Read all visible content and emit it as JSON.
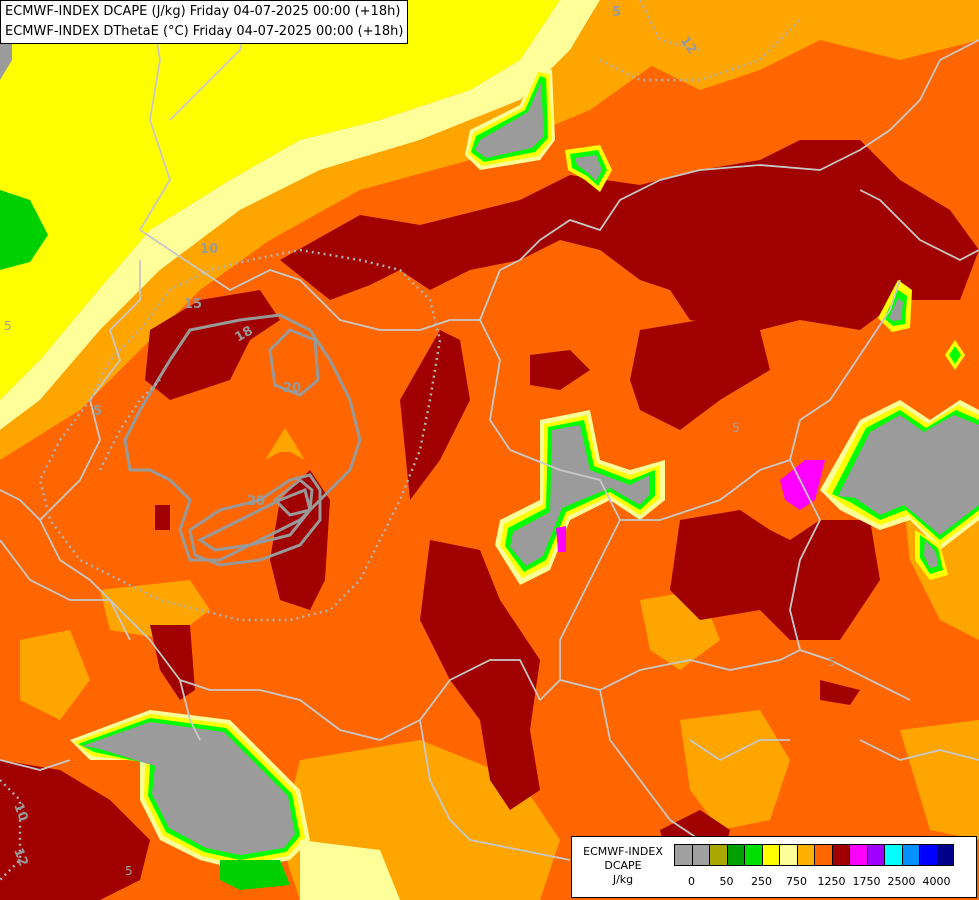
{
  "titles": {
    "line1": "ECMWF-INDEX DCAPE (J/kg) Friday 04-07-2025 00:00 (+18h)",
    "line2": "ECMWF-INDEX DThetaE (°C) Friday 04-07-2025 00:00 (+18h)"
  },
  "legend": {
    "title_line1": "ECMWF-INDEX",
    "title_line2": "DCAPE",
    "unit": "J/kg",
    "swatch_colors": [
      "#a0a0a0",
      "#a0a0a0",
      "#a8a800",
      "#00a000",
      "#00e000",
      "#ffff00",
      "#ffff99",
      "#ffb000",
      "#ff6600",
      "#a00000",
      "#ff00ff",
      "#a000ff",
      "#00ffff",
      "#0090ff",
      "#0000ff",
      "#00008a"
    ],
    "tick_labels": [
      "0",
      "50",
      "250",
      "750",
      "1250",
      "1750",
      "2500",
      "4000"
    ]
  },
  "contour_labels": [
    "5",
    "12",
    "5",
    "10",
    "15",
    "18",
    "20",
    "20",
    "5",
    "5",
    "5",
    "10",
    "12",
    "5"
  ],
  "colors": {
    "gray": "#9b9b9b",
    "green": "#00d000",
    "lime": "#00ff00",
    "yellow": "#ffff00",
    "light_yellow": "#ffff99",
    "orange": "#ffa500",
    "dark_orange": "#ff6600",
    "dark_red": "#a00000",
    "magenta": "#ff00ff"
  }
}
